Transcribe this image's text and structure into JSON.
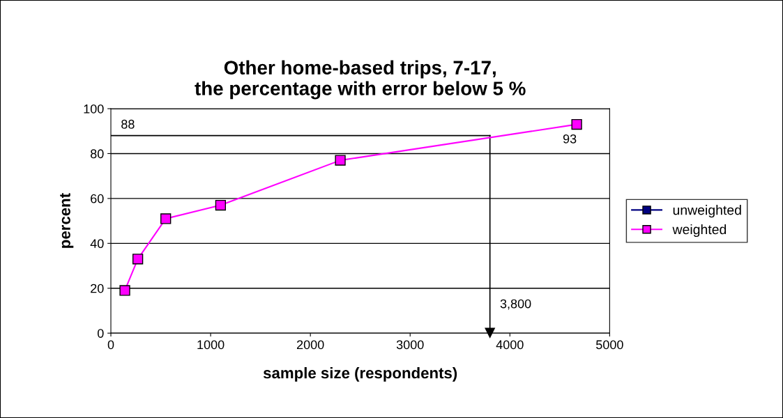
{
  "chart_data": {
    "type": "line",
    "title": "Other home-based trips, 7-17,\nthe percentage with error below 5 %",
    "xlabel": "sample size (respondents)",
    "ylabel": "percent",
    "x": [
      140,
      270,
      550,
      1100,
      2300,
      4670
    ],
    "series": [
      {
        "name": "unweighted",
        "color": "#000080",
        "values": [
          null,
          null,
          null,
          null,
          null,
          null
        ]
      },
      {
        "name": "weighted",
        "color": "#ff00ff",
        "values": [
          19,
          33,
          51,
          57,
          77,
          93
        ],
        "value_labels": [
          null,
          null,
          null,
          null,
          null,
          "93"
        ]
      }
    ],
    "xlim": [
      0,
      5000
    ],
    "xticks": [
      0,
      1000,
      2000,
      3000,
      4000,
      5000
    ],
    "ylim": [
      0,
      100
    ],
    "yticks": [
      0,
      20,
      40,
      60,
      80,
      100
    ],
    "ref_lines": [
      {
        "axis": "y",
        "value": 88,
        "label": "88",
        "color": "#000000"
      },
      {
        "axis": "x",
        "value": 3800,
        "label": "3,800",
        "color": "#000000"
      }
    ],
    "grid": "y",
    "legend": "right",
    "marker": "square",
    "line_style": "solid"
  }
}
